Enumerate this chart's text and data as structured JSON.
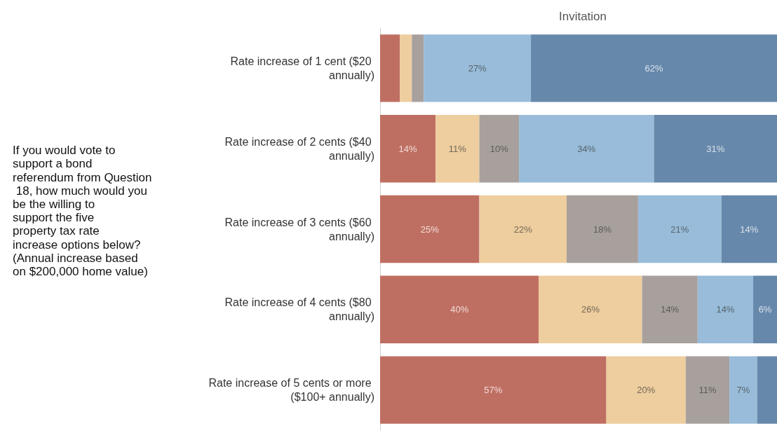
{
  "chart_data": {
    "type": "bar",
    "orientation": "horizontal",
    "stacked": true,
    "title": "Invitation",
    "ylabel": "If you would vote to support a bond referendum from Question 18, how much would you be the willing to support the five property tax rate increase options below? (Annual increase based on $200,000 home value)",
    "categories": [
      "Rate increase of 1 cent ($20 annually)",
      "Rate increase of 2 cents ($40 annually)",
      "Rate increase of 3 cents ($60 annually)",
      "Rate increase of 4 cents ($80 annually)",
      "Rate increase of 5 cents or more ($100+ annually)"
    ],
    "xlim": [
      0,
      100
    ],
    "tick_labels": "y",
    "grid": false,
    "series": [
      {
        "color": "#bf6f62",
        "values": [
          5,
          14,
          25,
          40,
          57
        ],
        "value_labels": [
          null,
          "14%",
          "25%",
          "40%",
          "57%"
        ]
      },
      {
        "color": "#eecd9e",
        "values": [
          3,
          11,
          22,
          26,
          20
        ],
        "value_labels": [
          null,
          "11%",
          "22%",
          "26%",
          "20%"
        ]
      },
      {
        "color": "#a8a09c",
        "values": [
          3,
          10,
          18,
          14,
          11
        ],
        "value_labels": [
          null,
          "10%",
          "18%",
          "14%",
          "11%"
        ]
      },
      {
        "color": "#98bcd9",
        "values": [
          27,
          34,
          21,
          14,
          7
        ],
        "value_labels": [
          "27%",
          "34%",
          "21%",
          "14%",
          "7%"
        ]
      },
      {
        "color": "#6688ab",
        "values": [
          62,
          31,
          14,
          6,
          5
        ],
        "value_labels": [
          "62%",
          "31%",
          "14%",
          "6%",
          null
        ]
      }
    ]
  }
}
